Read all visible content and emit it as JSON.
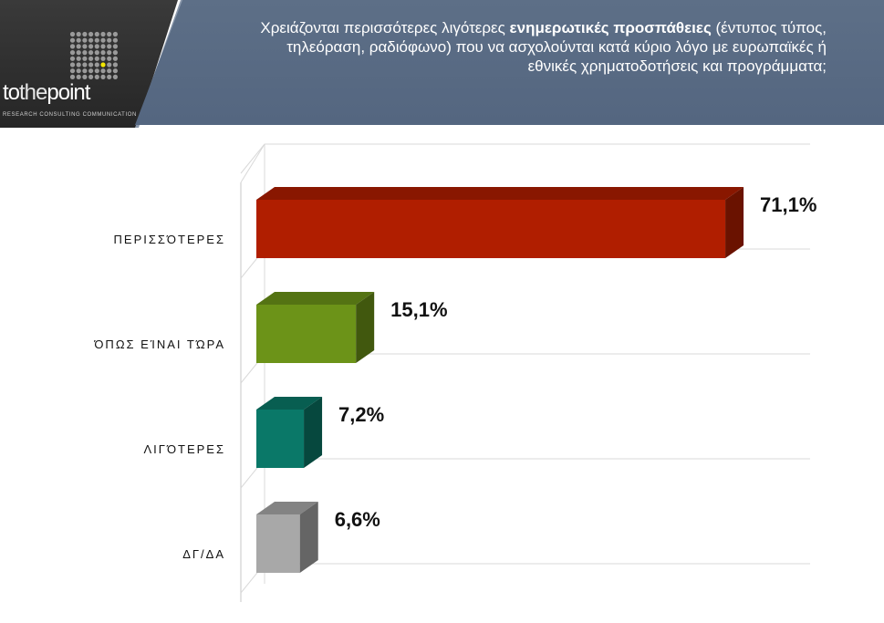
{
  "header": {
    "brand": {
      "part1": "to",
      "part2": "the",
      "part3": "point",
      "tagline": "RESEARCH  CONSULTING  COMMUNICATION"
    },
    "question_pre": "Χρειάζονται περισσότερες λιγότερες ",
    "question_bold": "ενημερωτικές προσπάθειες",
    "question_post": " (έντυπος τύπος, τηλεόραση, ραδιόφωνο) που να ασχολούνται κατά κύριο λόγο με ευρωπαϊκές ή εθνικές χρηματοδοτήσεις και προγράμματα;"
  },
  "chart_data": {
    "type": "bar",
    "orientation": "horizontal",
    "categories": [
      "ΠΕΡΙΣΣΌΤΕΡΕΣ",
      "ΌΠΩΣ ΕΊΝΑΙ ΤΏΡΑ",
      "ΛΙΓΌΤΕΡΕΣ",
      "ΔΓ/ΔΑ"
    ],
    "values": [
      71.1,
      15.1,
      7.2,
      6.6
    ],
    "value_labels": [
      "71,1%",
      "15,1%",
      "7,2%",
      "6,6%"
    ],
    "colors": [
      "#b01e00",
      "#6c9318",
      "#0a7868",
      "#a8a8a8"
    ],
    "xlim": [
      0,
      100
    ],
    "grid": true,
    "style": "3d"
  }
}
